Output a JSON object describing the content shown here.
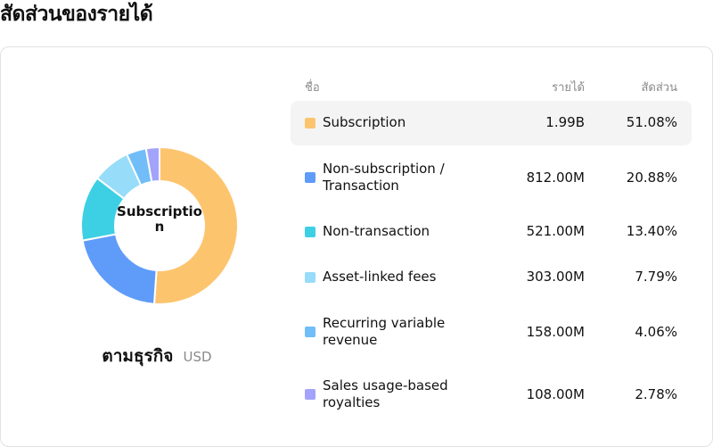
{
  "page": {
    "title": "สัดส่วนของรายได้"
  },
  "chart_data": {
    "type": "pie",
    "center_label": "Subscription",
    "caption": "ตามธุรกิจ",
    "unit": "USD",
    "headers": {
      "name": "ชื่อ",
      "value": "รายได้",
      "share": "สัดส่วน"
    },
    "categories": [
      "Subscription",
      "Non-subscription / Transaction",
      "Non-transaction",
      "Asset-linked fees",
      "Recurring variable revenue",
      "Sales usage-based royalties"
    ],
    "value_labels": [
      "1.99B",
      "812.00M",
      "521.00M",
      "303.00M",
      "158.00M",
      "108.00M"
    ],
    "share_labels": [
      "51.08%",
      "20.88%",
      "13.40%",
      "7.79%",
      "4.06%",
      "2.78%"
    ],
    "values": [
      51.08,
      20.88,
      13.4,
      7.79,
      4.06,
      2.78
    ],
    "colors": [
      "#FDC46E",
      "#5F9BF9",
      "#3DD0E4",
      "#97DCF8",
      "#71BDF8",
      "#A3A3FB"
    ],
    "highlighted_index": 0
  }
}
